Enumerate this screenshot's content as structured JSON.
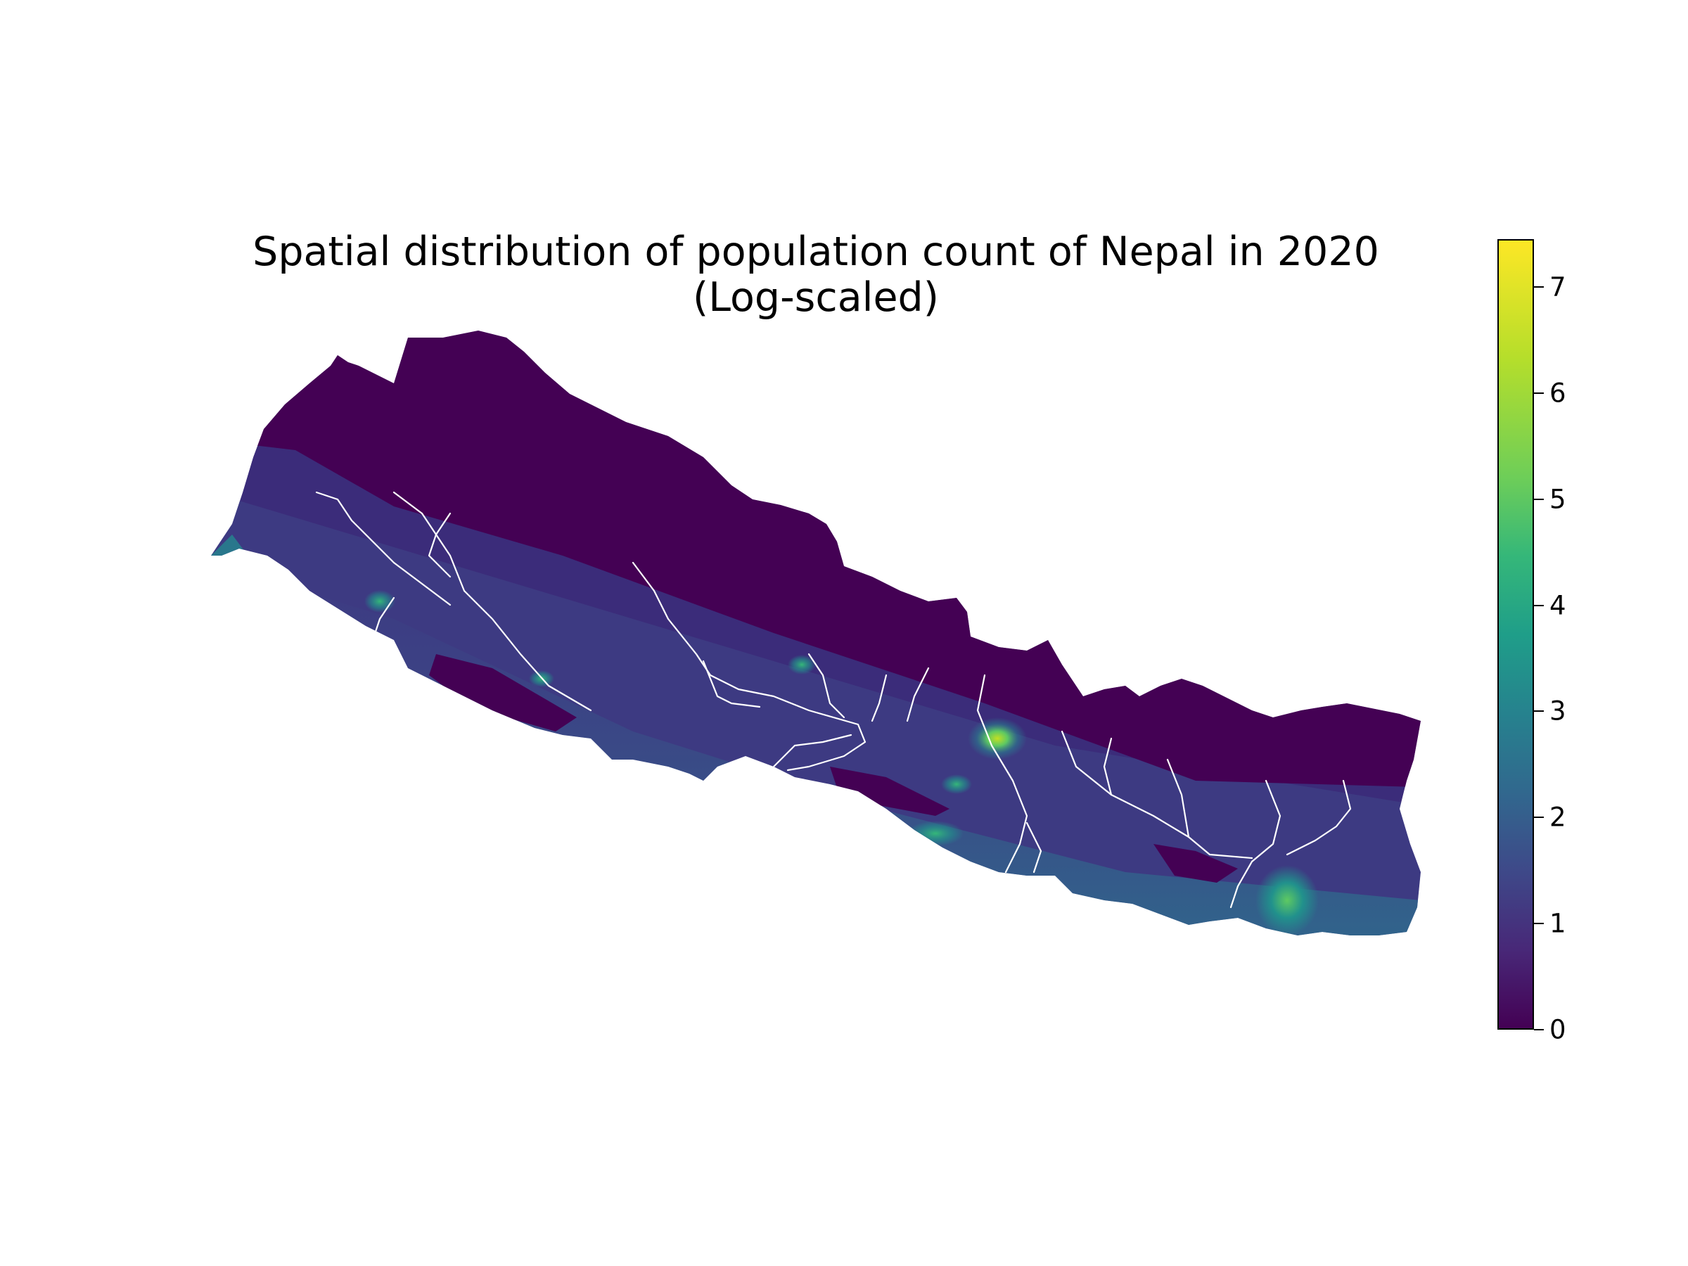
{
  "chart_data": {
    "type": "heatmap",
    "title": "Spatial distribution of population count of Nepal in 2020",
    "subtitle": "(Log-scaled)",
    "colormap": "viridis",
    "colorbar": {
      "min": 0,
      "max": 7.45,
      "ticks": [
        0,
        1,
        2,
        3,
        4,
        5,
        6,
        7
      ],
      "tick_labels": [
        "0",
        "1",
        "2",
        "3",
        "4",
        "5",
        "6",
        "7"
      ]
    },
    "axes_visible": false,
    "legend": "colorbar at right",
    "colors": {
      "low": "#440154",
      "mid": "#21918c",
      "high": "#fde725",
      "rivers": "#ffffff"
    }
  }
}
